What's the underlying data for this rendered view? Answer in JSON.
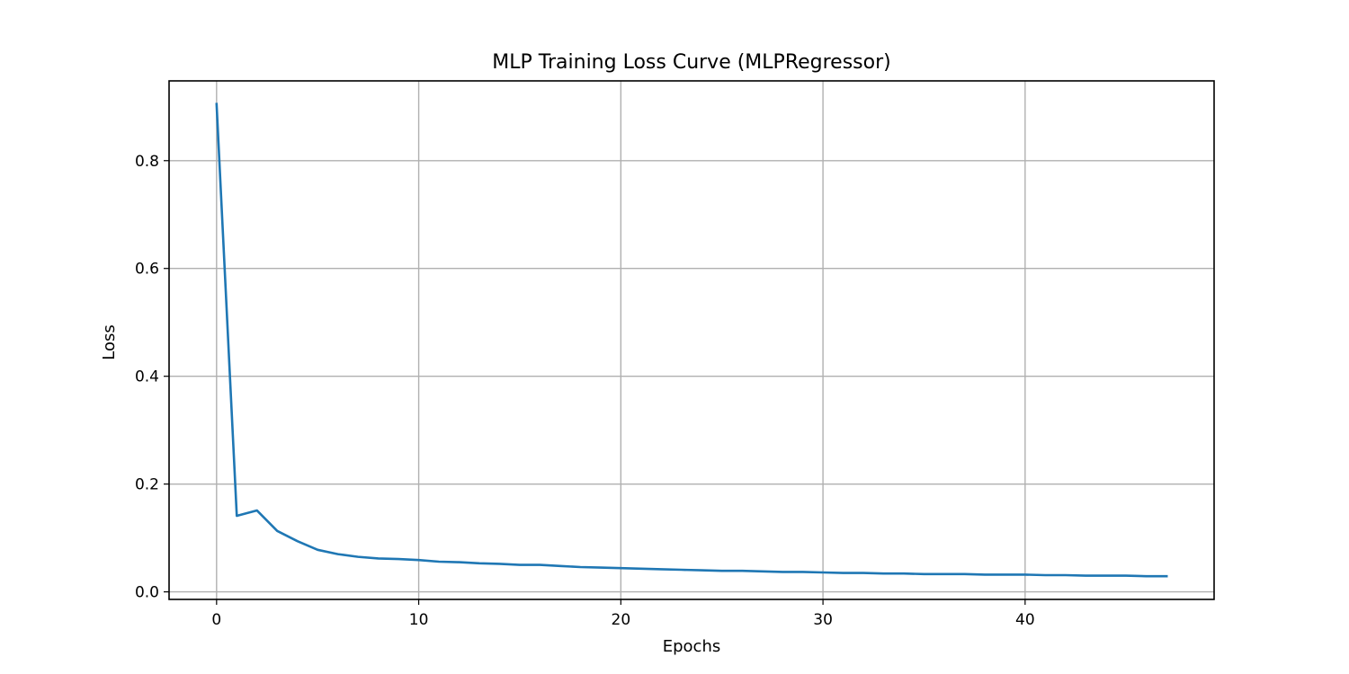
{
  "chart_data": {
    "type": "line",
    "title": "MLP Training Loss Curve (MLPRegressor)",
    "xlabel": "Epochs",
    "ylabel": "Loss",
    "xlim": [
      -2.35,
      49.35
    ],
    "ylim": [
      -0.014,
      0.948
    ],
    "xticks": [
      0,
      10,
      20,
      30,
      40
    ],
    "xtick_labels": [
      "0",
      "10",
      "20",
      "30",
      "40"
    ],
    "yticks": [
      0.0,
      0.2,
      0.4,
      0.6,
      0.8
    ],
    "ytick_labels": [
      "0.0",
      "0.2",
      "0.4",
      "0.6",
      "0.8"
    ],
    "grid": true,
    "line_color": "#1f77b4",
    "series": [
      {
        "x": [
          0,
          1,
          2,
          3,
          4,
          5,
          6,
          7,
          8,
          9,
          10,
          11,
          12,
          13,
          14,
          15,
          16,
          17,
          18,
          19,
          20,
          21,
          22,
          23,
          24,
          25,
          26,
          27,
          28,
          29,
          30,
          31,
          32,
          33,
          34,
          35,
          36,
          37,
          38,
          39,
          40,
          41,
          42,
          43,
          44,
          45,
          46,
          47
        ],
        "values": [
          0.905,
          0.141,
          0.151,
          0.113,
          0.094,
          0.078,
          0.07,
          0.065,
          0.062,
          0.061,
          0.059,
          0.056,
          0.055,
          0.053,
          0.052,
          0.05,
          0.05,
          0.048,
          0.046,
          0.045,
          0.044,
          0.043,
          0.042,
          0.041,
          0.04,
          0.039,
          0.039,
          0.038,
          0.037,
          0.037,
          0.036,
          0.035,
          0.035,
          0.034,
          0.034,
          0.033,
          0.033,
          0.033,
          0.032,
          0.032,
          0.032,
          0.031,
          0.031,
          0.03,
          0.03,
          0.03,
          0.029,
          0.029
        ]
      }
    ]
  }
}
